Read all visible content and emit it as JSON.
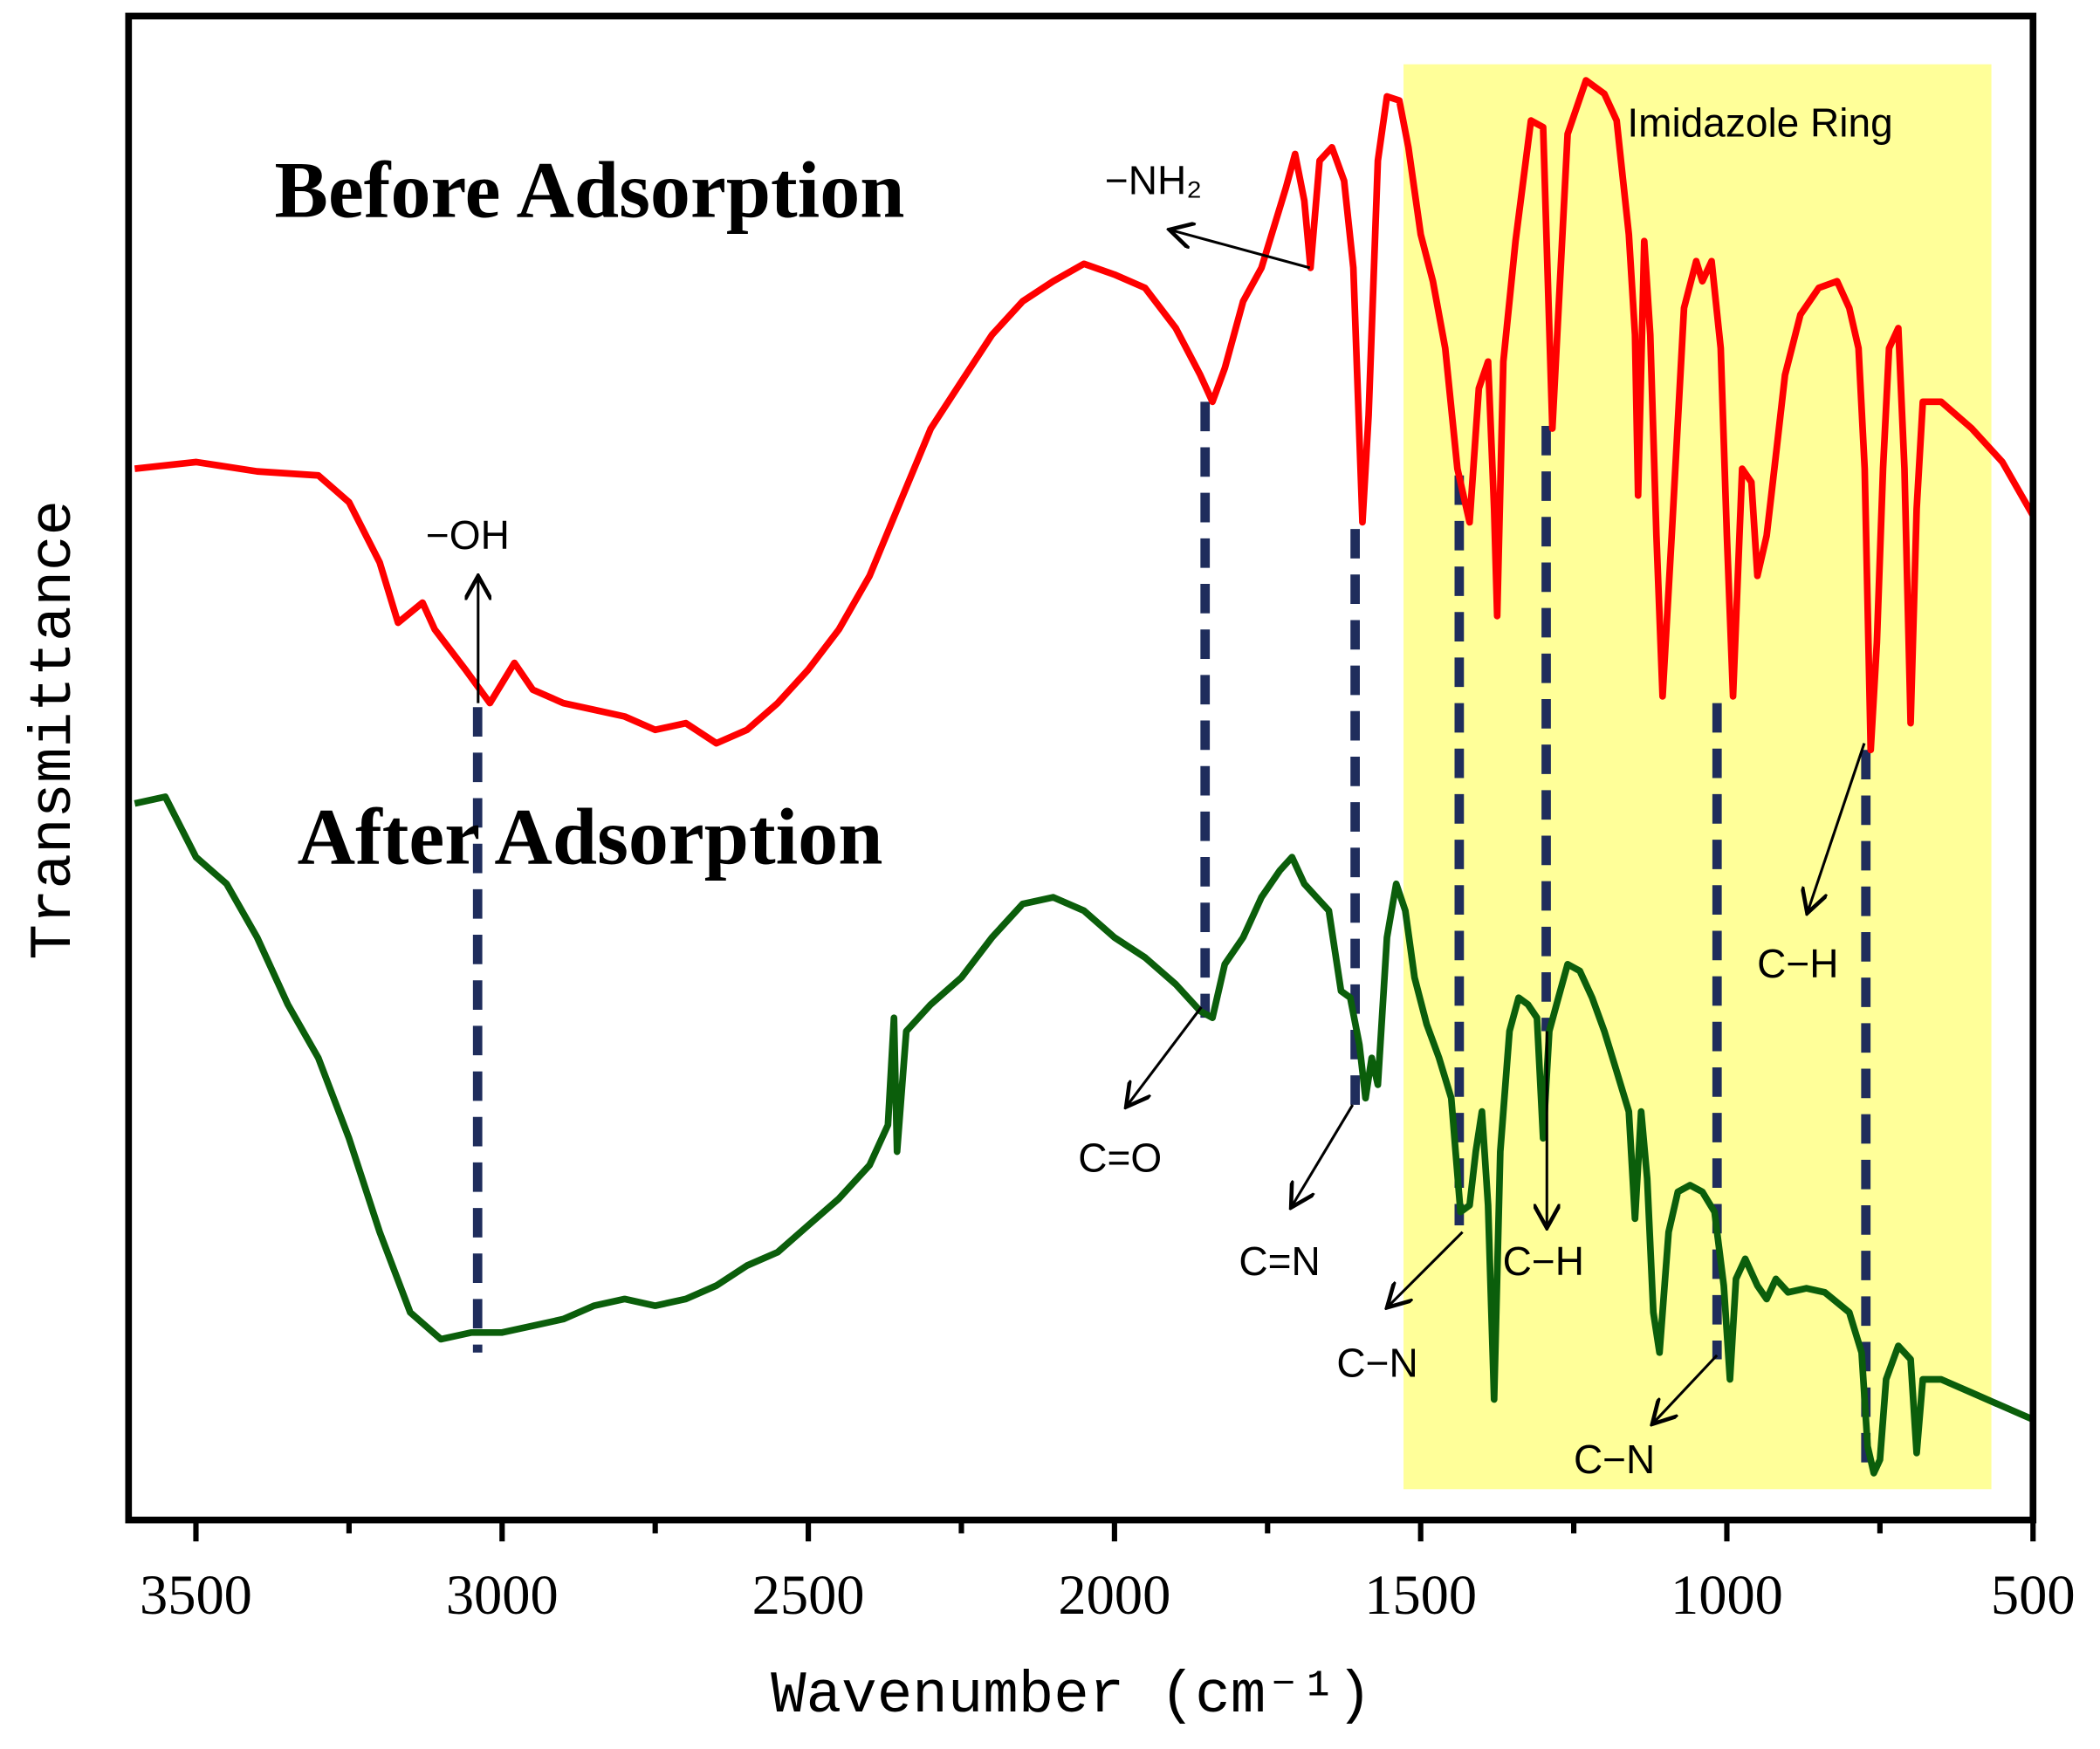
{
  "chart_data": {
    "type": "line",
    "xlabel": "Wavenumber (cm⁻¹)",
    "ylabel": "Transmittance",
    "xlim": [
      3610,
      500
    ],
    "ylim": [
      0,
      1120
    ],
    "xticks": [
      3500,
      3000,
      2500,
      2000,
      1500,
      1000,
      500
    ],
    "xminorticks": [
      3250,
      2750,
      2250,
      1750,
      1250,
      750
    ],
    "highlight": {
      "label": "Imidazole Ring",
      "xrange": [
        1528,
        568
      ],
      "color": "#ffff99"
    },
    "dashed_lines": {
      "x": [
        3040,
        1852,
        1607,
        1437,
        1295,
        1016,
        773
      ],
      "color": "#1f2d5c"
    },
    "annotations": [
      "−OH",
      "−NH₂",
      "C=O",
      "C=N",
      "C−N",
      "C−H",
      "C−N",
      "C−H"
    ],
    "series": [
      {
        "name": "Before Adsorption",
        "color": "#ff0000",
        "x": [
          3600,
          3500,
          3400,
          3300,
          3250,
          3200,
          3170,
          3130,
          3110,
          3060,
          3020,
          2980,
          2950,
          2900,
          2850,
          2800,
          2750,
          2700,
          2650,
          2600,
          2550,
          2500,
          2450,
          2400,
          2350,
          2300,
          2250,
          2200,
          2150,
          2100,
          2050,
          2000,
          1950,
          1900,
          1860,
          1840,
          1820,
          1790,
          1760,
          1720,
          1705,
          1690,
          1680,
          1665,
          1645,
          1625,
          1610,
          1595,
          1585,
          1570,
          1555,
          1535,
          1520,
          1500,
          1480,
          1460,
          1440,
          1420,
          1405,
          1390,
          1380,
          1375,
          1365,
          1345,
          1320,
          1300,
          1285,
          1260,
          1230,
          1200,
          1180,
          1160,
          1150,
          1145,
          1135,
          1125,
          1115,
          1105,
          1090,
          1070,
          1050,
          1040,
          1025,
          1010,
          1000,
          990,
          975,
          960,
          950,
          935,
          920,
          905,
          880,
          850,
          820,
          800,
          785,
          775,
          765,
          755,
          745,
          735,
          720,
          710,
          700,
          690,
          680,
          650,
          600,
          550,
          500
        ],
        "values": [
          785,
          790,
          783,
          780,
          760,
          715,
          670,
          685,
          665,
          635,
          610,
          640,
          620,
          610,
          605,
          600,
          590,
          595,
          580,
          590,
          610,
          635,
          665,
          705,
          760,
          815,
          850,
          885,
          910,
          925,
          938,
          930,
          920,
          890,
          855,
          835,
          860,
          910,
          935,
          995,
          1020,
          985,
          935,
          1015,
          1025,
          1000,
          935,
          745,
          825,
          1015,
          1063,
          1060,
          1025,
          960,
          925,
          875,
          785,
          745,
          845,
          865,
          755,
          675,
          865,
          955,
          1045,
          1040,
          815,
          1035,
          1075,
          1065,
          1045,
          960,
          885,
          765,
          955,
          885,
          735,
          615,
          735,
          905,
          940,
          925,
          940,
          875,
          735,
          615,
          785,
          775,
          705,
          735,
          795,
          855,
          900,
          920,
          925,
          905,
          875,
          785,
          575,
          655,
          785,
          875,
          890,
          785,
          595,
          755,
          835,
          835,
          815,
          790,
          750
        ]
      },
      {
        "name": "After Adsorption",
        "color": "#0b5e0b",
        "x": [
          3600,
          3550,
          3500,
          3450,
          3400,
          3350,
          3300,
          3250,
          3200,
          3150,
          3100,
          3050,
          3000,
          2950,
          2900,
          2850,
          2800,
          2750,
          2700,
          2650,
          2600,
          2550,
          2500,
          2450,
          2400,
          2370,
          2360,
          2355,
          2340,
          2300,
          2250,
          2200,
          2150,
          2100,
          2050,
          2000,
          1950,
          1900,
          1860,
          1840,
          1820,
          1790,
          1760,
          1730,
          1710,
          1690,
          1670,
          1650,
          1630,
          1615,
          1600,
          1590,
          1580,
          1570,
          1555,
          1540,
          1525,
          1510,
          1490,
          1470,
          1450,
          1435,
          1420,
          1410,
          1400,
          1390,
          1380,
          1370,
          1355,
          1340,
          1325,
          1310,
          1300,
          1290,
          1275,
          1260,
          1240,
          1220,
          1200,
          1180,
          1160,
          1150,
          1140,
          1130,
          1120,
          1110,
          1095,
          1080,
          1060,
          1040,
          1020,
          1005,
          995,
          985,
          970,
          950,
          935,
          920,
          900,
          870,
          840,
          800,
          780,
          770,
          760,
          750,
          740,
          720,
          700,
          690,
          680,
          650,
          600,
          550,
          500
        ],
        "values": [
          535,
          540,
          495,
          475,
          435,
          385,
          345,
          285,
          215,
          155,
          135,
          140,
          140,
          145,
          150,
          160,
          165,
          160,
          165,
          175,
          190,
          200,
          220,
          240,
          265,
          295,
          375,
          275,
          365,
          385,
          405,
          435,
          460,
          465,
          455,
          435,
          420,
          400,
          380,
          375,
          415,
          435,
          465,
          485,
          495,
          475,
          465,
          455,
          395,
          390,
          355,
          315,
          345,
          325,
          435,
          475,
          455,
          405,
          370,
          345,
          315,
          230,
          235,
          275,
          305,
          235,
          90,
          275,
          365,
          390,
          385,
          375,
          285,
          365,
          390,
          415,
          410,
          390,
          365,
          335,
          305,
          225,
          305,
          255,
          155,
          125,
          215,
          245,
          250,
          245,
          230,
          175,
          105,
          180,
          195,
          175,
          165,
          180,
          170,
          173,
          170,
          155,
          125,
          55,
          35,
          45,
          105,
          130,
          120,
          50,
          105,
          105,
          95,
          85,
          75
        ]
      }
    ]
  }
}
